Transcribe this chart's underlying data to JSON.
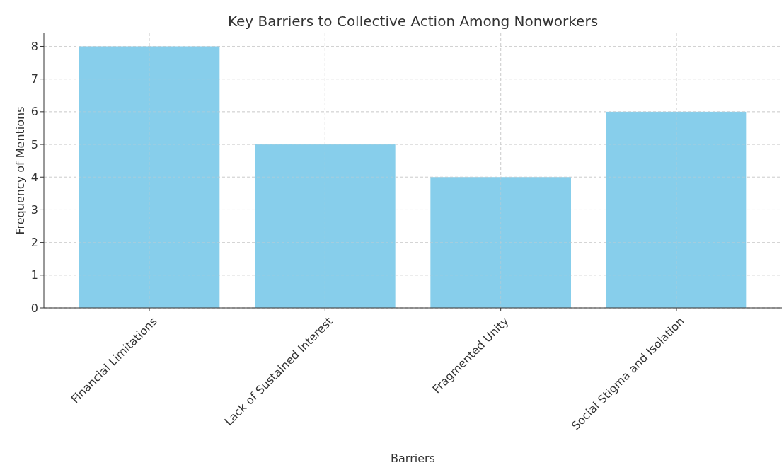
{
  "chart_data": {
    "type": "bar",
    "title": "Key Barriers to Collective Action Among Nonworkers",
    "xlabel": "Barriers",
    "ylabel": "Frequency of Mentions",
    "categories": [
      "Financial Limitations",
      "Lack of Sustained Interest",
      "Fragmented Unity",
      "Social Stigma and Isolation"
    ],
    "values": [
      8,
      5,
      4,
      6
    ],
    "color": "#87ceeb",
    "ylim": [
      0,
      8.4
    ],
    "yticks": [
      0,
      1,
      2,
      3,
      4,
      5,
      6,
      7,
      8
    ],
    "grid": true
  }
}
